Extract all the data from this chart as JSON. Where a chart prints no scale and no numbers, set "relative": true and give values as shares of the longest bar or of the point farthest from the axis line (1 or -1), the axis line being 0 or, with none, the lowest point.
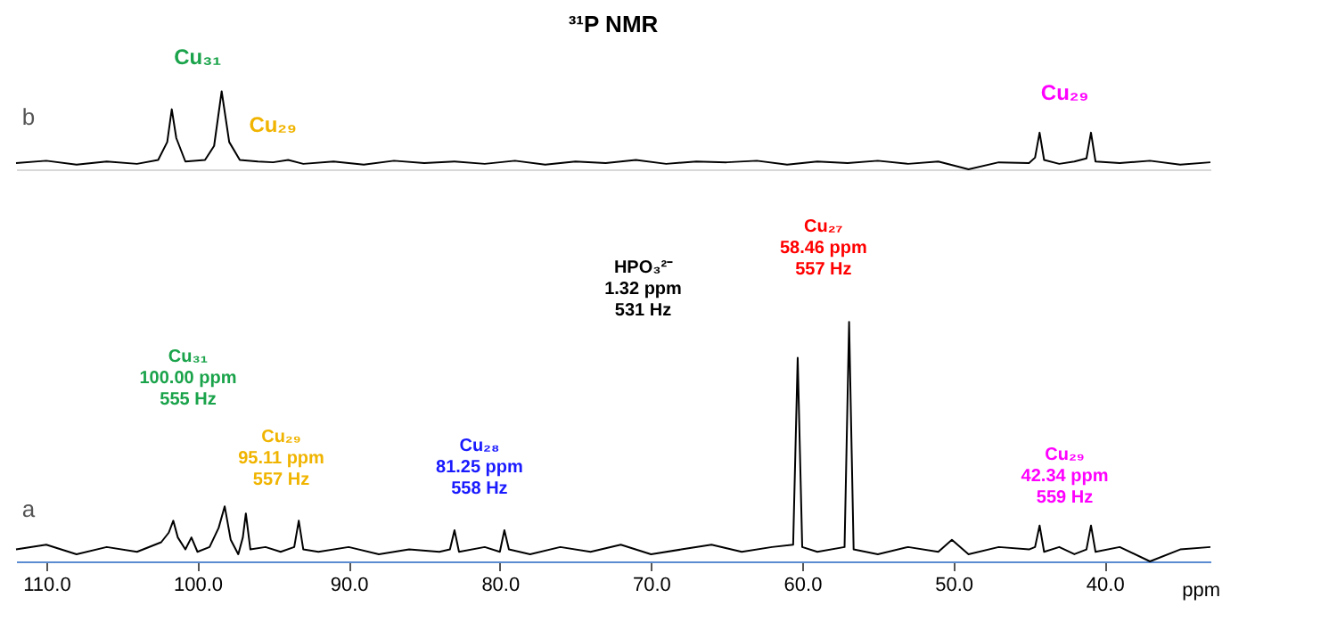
{
  "chart_data": [
    {
      "type": "line",
      "title": "³¹P NMR",
      "relative": true,
      "tick_labels": false,
      "xlim": [
        112,
        33
      ],
      "x": [
        112,
        110,
        108,
        106,
        104,
        102.6,
        102.0,
        101.7,
        101.4,
        100.8,
        99.5,
        98.9,
        98.4,
        97.9,
        97.2,
        96,
        95,
        94,
        93,
        91,
        89,
        87,
        85,
        83,
        81,
        79,
        77,
        75,
        73,
        71,
        69,
        67,
        65,
        63,
        61,
        59,
        57,
        55,
        53,
        51,
        49,
        47,
        45,
        44.6,
        44.3,
        44.0,
        43,
        42,
        41.2,
        40.9,
        40.6,
        39,
        37,
        35,
        33
      ],
      "series": [
        {
          "color": "#000000",
          "values": [
            0.08,
            0.11,
            0.06,
            0.1,
            0.07,
            0.12,
            0.35,
            0.77,
            0.4,
            0.1,
            0.12,
            0.3,
            1.0,
            0.35,
            0.12,
            0.1,
            0.09,
            0.12,
            0.07,
            0.1,
            0.06,
            0.11,
            0.08,
            0.1,
            0.07,
            0.11,
            0.06,
            0.1,
            0.08,
            0.12,
            0.07,
            0.1,
            0.09,
            0.11,
            0.06,
            0.1,
            0.08,
            0.11,
            0.07,
            0.1,
            0.0,
            0.09,
            0.08,
            0.15,
            0.47,
            0.12,
            0.07,
            0.1,
            0.14,
            0.47,
            0.1,
            0.08,
            0.11,
            0.06,
            0.09
          ]
        }
      ],
      "annotations": [
        "b",
        "Cu₃₁",
        "Cu₂₉",
        "Cu₂₉"
      ]
    },
    {
      "type": "line",
      "relative": true,
      "tick_labels": "x",
      "xlabel": "ppm",
      "xlim": [
        112,
        33
      ],
      "xticks": [
        {
          "value": 110,
          "label": "110.0"
        },
        {
          "value": 100,
          "label": "100.0"
        },
        {
          "value": 90,
          "label": "90.0"
        },
        {
          "value": 80,
          "label": "80.0"
        },
        {
          "value": 70,
          "label": "70.0"
        },
        {
          "value": 60,
          "label": "60.0"
        },
        {
          "value": 50,
          "label": "50.0"
        },
        {
          "value": 40,
          "label": "40.0"
        }
      ],
      "x": [
        112,
        110,
        108,
        106,
        104,
        102.4,
        101.9,
        101.6,
        101.3,
        100.8,
        100.4,
        100.0,
        99.2,
        98.6,
        98.2,
        97.8,
        97.3,
        97.0,
        96.8,
        96.5,
        95.5,
        94.5,
        93.6,
        93.3,
        93.0,
        92,
        90,
        88,
        86,
        84,
        83.3,
        83.0,
        82.7,
        81,
        80.0,
        79.7,
        79.4,
        78,
        76,
        74,
        72,
        70,
        68,
        66,
        64,
        62,
        60.6,
        60.3,
        60.0,
        59,
        57.2,
        56.9,
        56.6,
        55,
        53,
        51,
        50.1,
        49,
        47,
        45,
        44.6,
        44.3,
        44.0,
        43,
        42,
        41.2,
        40.9,
        40.6,
        39,
        37,
        35,
        33
      ],
      "series": [
        {
          "color": "#000000",
          "values": [
            0.05,
            0.07,
            0.03,
            0.06,
            0.04,
            0.08,
            0.12,
            0.17,
            0.1,
            0.05,
            0.1,
            0.04,
            0.06,
            0.14,
            0.23,
            0.09,
            0.03,
            0.1,
            0.2,
            0.05,
            0.06,
            0.04,
            0.06,
            0.17,
            0.05,
            0.04,
            0.06,
            0.03,
            0.05,
            0.04,
            0.05,
            0.13,
            0.04,
            0.06,
            0.04,
            0.13,
            0.05,
            0.03,
            0.06,
            0.04,
            0.07,
            0.03,
            0.05,
            0.07,
            0.04,
            0.06,
            0.07,
            0.85,
            0.06,
            0.04,
            0.06,
            1.0,
            0.05,
            0.03,
            0.06,
            0.04,
            0.09,
            0.03,
            0.06,
            0.05,
            0.06,
            0.15,
            0.04,
            0.06,
            0.03,
            0.05,
            0.15,
            0.04,
            0.06,
            0.0,
            0.05,
            0.06
          ]
        }
      ],
      "annotations": [
        "a",
        "Cu₃₁\n100.00 ppm\n555 Hz",
        "Cu₂₉\n95.11 ppm\n557 Hz",
        "Cu₂₈\n81.25 ppm\n558 Hz",
        "HPO₃²⁻\n1.32 ppm\n531 Hz",
        "Cu₂₇\n58.46 ppm\n557 Hz",
        "Cu₂₉\n42.34 ppm\n559 Hz"
      ]
    }
  ]
}
